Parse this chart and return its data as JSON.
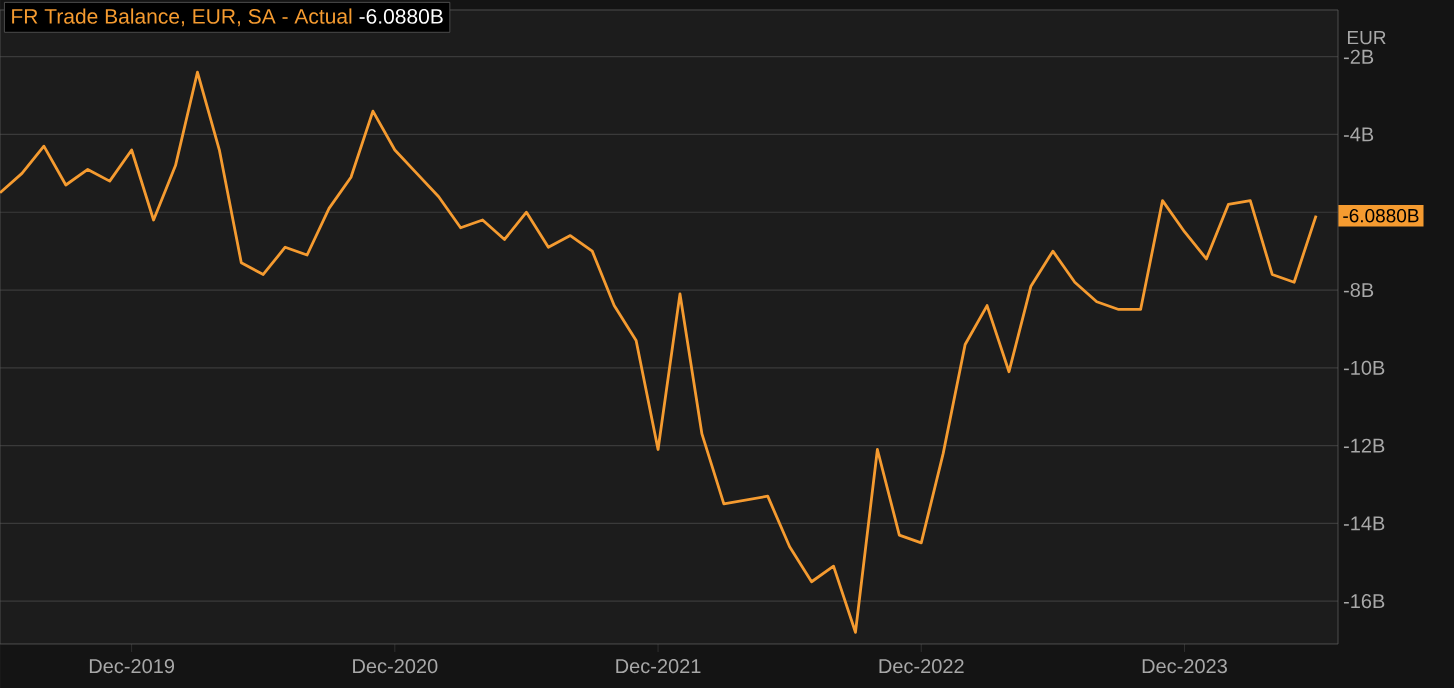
{
  "chart_data": {
    "type": "line",
    "title": "FR Trade Balance, EUR, SA - Actual",
    "ylabel": "EUR",
    "x": [
      "2019-06",
      "2019-07",
      "2019-08",
      "2019-09",
      "2019-10",
      "2019-11",
      "2019-12",
      "2020-01",
      "2020-02",
      "2020-03",
      "2020-04",
      "2020-05",
      "2020-06",
      "2020-07",
      "2020-08",
      "2020-09",
      "2020-10",
      "2020-11",
      "2020-12",
      "2021-01",
      "2021-02",
      "2021-03",
      "2021-04",
      "2021-05",
      "2021-06",
      "2021-07",
      "2021-08",
      "2021-09",
      "2021-10",
      "2021-11",
      "2021-12",
      "2022-01",
      "2022-02",
      "2022-03",
      "2022-04",
      "2022-05",
      "2022-06",
      "2022-07",
      "2022-08",
      "2022-09",
      "2022-10",
      "2022-11",
      "2022-12",
      "2023-01",
      "2023-02",
      "2023-03",
      "2023-04",
      "2023-05",
      "2023-06",
      "2023-07",
      "2023-08",
      "2023-09",
      "2023-10",
      "2023-11",
      "2023-12",
      "2024-01",
      "2024-02",
      "2024-03",
      "2024-04",
      "2024-05",
      "2024-06"
    ],
    "series": [
      {
        "color": "#f59b30",
        "values": [
          -5.5,
          -5.0,
          -4.3,
          -5.3,
          -4.9,
          -5.2,
          -4.4,
          -6.2,
          -4.8,
          -2.4,
          -4.4,
          -7.3,
          -7.6,
          -6.9,
          -7.1,
          -5.9,
          -5.1,
          -3.4,
          -4.4,
          -5.0,
          -5.6,
          -6.4,
          -6.2,
          -6.7,
          -6.0,
          -6.9,
          -6.6,
          -7.0,
          -8.4,
          -9.3,
          -12.1,
          -8.1,
          -11.7,
          -13.5,
          -13.4,
          -13.3,
          -14.6,
          -15.5,
          -15.1,
          -16.8,
          -12.1,
          -14.3,
          -14.5,
          -12.2,
          -9.4,
          -8.4,
          -10.1,
          -7.9,
          -7.0,
          -7.8,
          -8.3,
          -8.5,
          -8.5,
          -5.7,
          -6.5,
          -7.2,
          -5.8,
          -5.7,
          -7.6,
          -7.8,
          -6.088
        ]
      }
    ],
    "xlim": [
      "2019-06",
      "2024-07"
    ],
    "xticks": [
      {
        "value": "2019-12",
        "label": "Dec-2019"
      },
      {
        "value": "2020-12",
        "label": "Dec-2020"
      },
      {
        "value": "2021-12",
        "label": "Dec-2021"
      },
      {
        "value": "2022-12",
        "label": "Dec-2022"
      },
      {
        "value": "2023-12",
        "label": "Dec-2023"
      }
    ],
    "ylim": [
      -17.1,
      -0.8
    ],
    "yticks": [
      {
        "value": -2,
        "label": "-2B"
      },
      {
        "value": -4,
        "label": "-4B"
      },
      {
        "value": -6,
        "label": null
      },
      {
        "value": -8,
        "label": "-8B"
      },
      {
        "value": -10,
        "label": "-10B"
      },
      {
        "value": -12,
        "label": "-12B"
      },
      {
        "value": -14,
        "label": "-14B"
      },
      {
        "value": -16,
        "label": "-16B"
      }
    ],
    "grid": "y",
    "annotations": [
      "-6.0880B",
      {
        "text": "-6.0880B",
        "x": "2024-06",
        "y": -6.088
      }
    ]
  }
}
